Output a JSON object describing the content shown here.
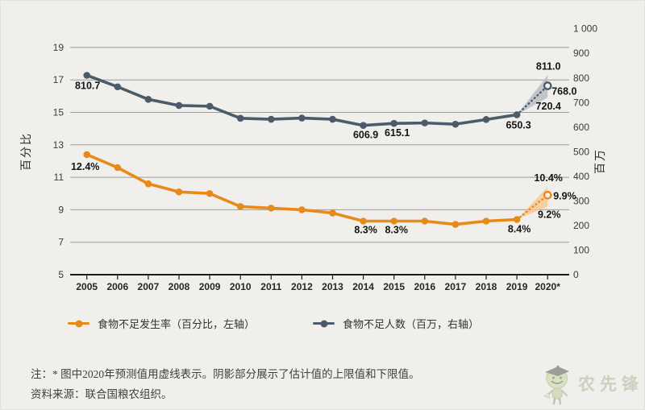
{
  "colors": {
    "orange": "#E8891A",
    "slate": "#4C5B6A",
    "background": "#F0EFEC",
    "gridline": "#9B9B9B",
    "axis_line": "#1C1C1C",
    "shade_orange": "#F6C690",
    "shade_gray": "#B4BAC0",
    "label_text": "#141414"
  },
  "axes": {
    "left_label": "百分比",
    "right_label": "百万",
    "left_ticks": [
      "19",
      "17",
      "15",
      "13",
      "11",
      "9",
      "7",
      "5"
    ],
    "right_ticks": [
      "1 000",
      "900",
      "800",
      "700",
      "600",
      "500",
      "400",
      "300",
      "200",
      "100",
      "0"
    ],
    "x_ticks": [
      "2005",
      "2006",
      "2007",
      "2008",
      "2009",
      "2010",
      "2011",
      "2012",
      "2013",
      "2014",
      "2015",
      "2016",
      "2017",
      "2018",
      "2019",
      "2020*"
    ]
  },
  "chart_data": {
    "type": "line",
    "x": [
      2005,
      2006,
      2007,
      2008,
      2009,
      2010,
      2011,
      2012,
      2013,
      2014,
      2015,
      2016,
      2017,
      2018,
      2019,
      2020
    ],
    "left_axis": {
      "label": "百分比",
      "min": 5,
      "max": 19
    },
    "right_axis": {
      "label": "百万",
      "min": 0,
      "max": 1000
    },
    "grid": true,
    "legend_position": "bottom",
    "series": [
      {
        "id": "undernourishment-rate",
        "name": "食物不足发生率（百分比，左轴）",
        "axis": "left",
        "color": "#E8891A",
        "shade": "#F6C690",
        "values": [
          12.4,
          11.6,
          10.6,
          10.1,
          10.0,
          9.2,
          9.1,
          9.0,
          8.8,
          8.3,
          8.3,
          8.3,
          8.1,
          8.3,
          8.4,
          null
        ],
        "projection_2020": {
          "mid": 9.9,
          "low": 9.2,
          "high": 10.4
        },
        "point_labels": [
          {
            "index": 0,
            "text": "12.4%",
            "dx": -2,
            "dy": 19,
            "anchor": "middle"
          },
          {
            "index": 9,
            "text": "8.3%",
            "dx": 3,
            "dy": 15,
            "anchor": "middle"
          },
          {
            "index": 10,
            "text": "8.3%",
            "dx": 3,
            "dy": 15,
            "anchor": "middle"
          },
          {
            "index": 14,
            "text": "8.4%",
            "dx": 3,
            "dy": 16,
            "anchor": "middle"
          }
        ],
        "projection_labels": {
          "high": {
            "text": "10.4%",
            "dx": 1,
            "dy": -7,
            "anchor": "middle"
          },
          "mid": {
            "text": "9.9%",
            "dx": 7,
            "dy": 5,
            "anchor": "start"
          },
          "low": {
            "text": "9.2%",
            "dx": 2,
            "dy": 14,
            "anchor": "middle"
          }
        }
      },
      {
        "id": "undernourished-number",
        "name": "食物不足人数（百万，右轴）",
        "axis": "right",
        "color": "#4C5B6A",
        "shade": "#B4BAC0",
        "values": [
          810.7,
          764,
          713,
          688,
          685,
          636,
          632,
          637,
          632,
          606.9,
          615.1,
          617,
          612,
          631,
          650.3,
          null
        ],
        "projection_2020": {
          "mid": 768.0,
          "low": 720.4,
          "high": 811.0
        },
        "point_labels": [
          {
            "index": 0,
            "text": "810.7",
            "dx": 1,
            "dy": 17,
            "anchor": "middle"
          },
          {
            "index": 9,
            "text": "606.9",
            "dx": 3,
            "dy": 16,
            "anchor": "middle"
          },
          {
            "index": 10,
            "text": "615.1",
            "dx": 4,
            "dy": 16,
            "anchor": "middle"
          },
          {
            "index": 14,
            "text": "650.3",
            "dx": 2,
            "dy": 17,
            "anchor": "middle"
          }
        ],
        "projection_labels": {
          "high": {
            "text": "811.0",
            "dx": 1,
            "dy": -7,
            "anchor": "middle"
          },
          "mid": {
            "text": "768.0",
            "dx": 5,
            "dy": 11,
            "anchor": "start"
          },
          "low": {
            "text": "720.4",
            "dx": 1,
            "dy": 15,
            "anchor": "middle"
          }
        }
      }
    ]
  },
  "legend": {
    "items": [
      {
        "label": "食物不足发生率（百分比，左轴）",
        "color": "#E8891A"
      },
      {
        "label": "食物不足人数（百万，右轴）",
        "color": "#4C5B6A"
      }
    ]
  },
  "notes": {
    "note": "注：* 图中2020年预测值用虚线表示。阴影部分展示了估计值的上限值和下限值。",
    "source": "资料来源：联合国粮农组织。"
  },
  "logo": {
    "text": "农先锋"
  }
}
